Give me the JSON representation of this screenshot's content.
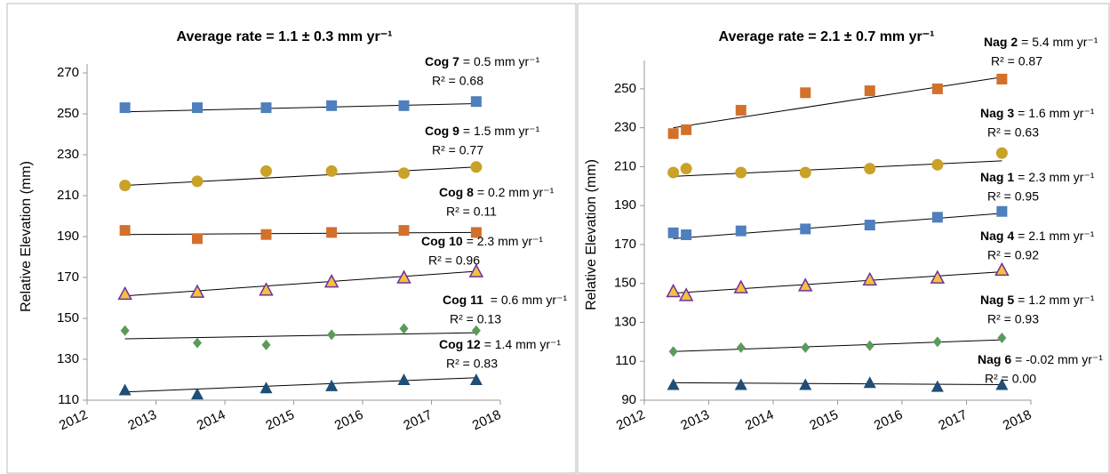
{
  "chart_data": [
    {
      "type": "scatter",
      "title": "Average rate = 1.1 ± 0.3 mm yr⁻¹",
      "y_label": "Relative Elevation (mm)",
      "xlim": [
        2012,
        2018
      ],
      "xticks": [
        2012,
        2013,
        2014,
        2015,
        2016,
        2017,
        2018
      ],
      "ylim": [
        110,
        270
      ],
      "yticks": [
        110,
        130,
        150,
        170,
        190,
        210,
        230,
        250,
        270
      ],
      "x": [
        2012.55,
        2013.6,
        2014.6,
        2015.55,
        2016.6,
        2017.65
      ],
      "series": [
        {
          "name": "Cog 7",
          "rate_label": "= 0.5 mm yr⁻¹",
          "r2_label": "R² = 0.68",
          "marker": "square",
          "color": "#4f7fbd",
          "values": [
            253,
            253,
            253,
            254,
            254,
            256
          ],
          "trend": [
            251,
            255
          ]
        },
        {
          "name": "Cog 9",
          "rate_label": "= 1.5 mm yr⁻¹",
          "r2_label": "R² = 0.77",
          "marker": "circle",
          "color": "#c9a227",
          "values": [
            215,
            217,
            222,
            222,
            221,
            224
          ],
          "trend": [
            215,
            224
          ]
        },
        {
          "name": "Cog 8",
          "rate_label": "= 0.2 mm yr⁻¹",
          "r2_label": "R² = 0.11",
          "marker": "square",
          "color": "#d2702c",
          "values": [
            193,
            189,
            191,
            192,
            193,
            192
          ],
          "trend": [
            191,
            192
          ]
        },
        {
          "name": "Cog 10",
          "rate_label": "= 2.3 mm yr⁻¹",
          "r2_label": "R² = 0.96",
          "marker": "triangle",
          "color": "#f2c23a",
          "values": [
            162,
            163,
            164,
            168,
            170,
            173
          ],
          "trend": [
            161,
            173
          ]
        },
        {
          "name": "Cog 11",
          "rate_label": " = 0.6 mm yr⁻¹",
          "r2_label": "R² = 0.13",
          "marker": "diamond",
          "color": "#5c9a5c",
          "values": [
            144,
            138,
            137,
            142,
            145,
            144
          ],
          "trend": [
            140,
            143
          ]
        },
        {
          "name": "Cog 12",
          "rate_label": "= 1.4 mm yr⁻¹",
          "r2_label": "R² = 0.83",
          "marker": "triangle",
          "color": "#1f4e79",
          "values": [
            115,
            113,
            116,
            117,
            120,
            120
          ],
          "trend": [
            114,
            121
          ]
        }
      ]
    },
    {
      "type": "scatter",
      "title": "Average rate = 2.1 ± 0.7 mm yr⁻¹",
      "y_label": "Relative Elevation (mm)",
      "xlim": [
        2012,
        2018
      ],
      "xticks": [
        2012,
        2013,
        2014,
        2015,
        2016,
        2017,
        2018
      ],
      "ylim": [
        90,
        260
      ],
      "yticks": [
        90,
        110,
        130,
        150,
        170,
        190,
        210,
        230,
        250
      ],
      "x": [
        2012.45,
        2012.65,
        2013.5,
        2014.5,
        2015.5,
        2016.55,
        2017.55
      ],
      "series": [
        {
          "name": "Nag 2",
          "rate_label": "= 5.4 mm yr⁻¹",
          "r2_label": "R² = 0.87",
          "marker": "square",
          "color": "#d2702c",
          "values": [
            227,
            229,
            239,
            248,
            249,
            250,
            255
          ],
          "trend": [
            230,
            256
          ]
        },
        {
          "name": "Nag 3",
          "rate_label": "= 1.6 mm yr⁻¹",
          "r2_label": "R² = 0.63",
          "marker": "circle",
          "color": "#c9a227",
          "values": [
            207,
            209,
            207,
            207,
            209,
            211,
            217
          ],
          "trend": [
            205,
            213
          ]
        },
        {
          "name": "Nag 1",
          "rate_label": "= 2.3 mm yr⁻¹",
          "r2_label": "R² = 0.95",
          "marker": "square",
          "color": "#4f7fbd",
          "values": [
            176,
            175,
            177,
            178,
            180,
            184,
            187
          ],
          "trend": [
            173,
            186
          ]
        },
        {
          "name": "Nag 4",
          "rate_label": "= 2.1 mm yr⁻¹",
          "r2_label": "R² = 0.92",
          "marker": "triangle",
          "color": "#f2c23a",
          "values": [
            146,
            144,
            148,
            149,
            152,
            153,
            157
          ],
          "trend": [
            145,
            156
          ]
        },
        {
          "name": "Nag 5",
          "rate_label": "= 1.2 mm yr⁻¹",
          "r2_label": "R² = 0.93",
          "marker": "diamond",
          "color": "#5c9a5c",
          "values": [
            115,
            null,
            117,
            117,
            118,
            120,
            122
          ],
          "trend": [
            115,
            121
          ]
        },
        {
          "name": "Nag 6",
          "rate_label": "= -0.02 mm yr⁻¹",
          "r2_label": "R² = 0.00",
          "marker": "triangle",
          "color": "#1f4e79",
          "values": [
            98,
            null,
            98,
            98,
            99,
            97,
            98
          ],
          "trend": [
            99,
            98
          ]
        }
      ]
    }
  ]
}
